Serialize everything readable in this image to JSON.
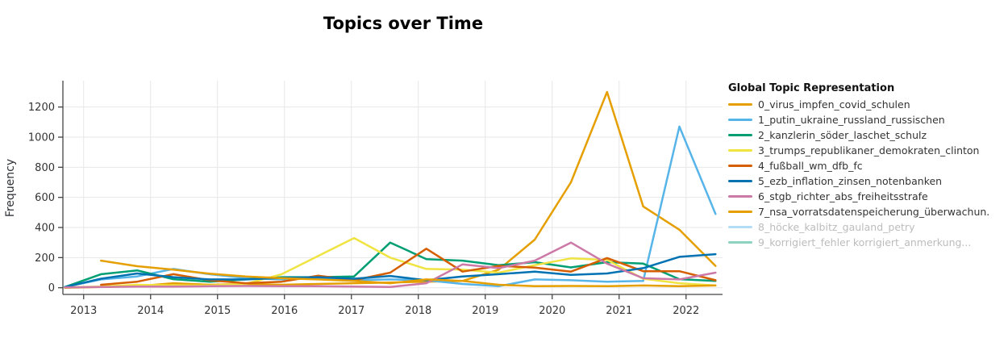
{
  "title": "Topics over Time",
  "axes": {
    "y_title": "Frequency",
    "x_tick_labels": [
      "2013",
      "2014",
      "2015",
      "2016",
      "2017",
      "2018",
      "2019",
      "2020",
      "2021",
      "2022"
    ],
    "y_tick_labels": [
      "0",
      "200",
      "400",
      "600",
      "800",
      "1000",
      "1200"
    ]
  },
  "legend": {
    "title": "Global Topic Representation"
  },
  "colors": {
    "grid": "#e7e7e7",
    "axis": "#444444",
    "tick_text": "#333333",
    "title_text": "#000000",
    "legend_muted_text": "#bcbcbc"
  },
  "chart_data": {
    "type": "line",
    "title": "Topics over Time",
    "xlabel": "",
    "ylabel": "Frequency",
    "legend_title": "Global Topic Representation",
    "grid": true,
    "legend_position": "right",
    "x": [
      2012.72,
      2013.26,
      2013.8,
      2014.34,
      2014.88,
      2015.42,
      2015.96,
      2016.5,
      2017.04,
      2017.58,
      2018.12,
      2018.66,
      2019.2,
      2019.74,
      2020.28,
      2020.82,
      2021.36,
      2021.9,
      2022.44
    ],
    "x_ticks": [
      2013,
      2014,
      2015,
      2016,
      2017,
      2018,
      2019,
      2020,
      2021,
      2022
    ],
    "y_ticks": [
      0,
      200,
      400,
      600,
      800,
      1000,
      1200
    ],
    "xlim": [
      2012.69,
      2022.545
    ],
    "ylim": [
      -44.5,
      1375
    ],
    "series": [
      {
        "name": "0_virus_impfen_covid_schulen",
        "color": "#E69F00",
        "hidden": false,
        "values": [
          0,
          5,
          10,
          30,
          20,
          25,
          20,
          25,
          30,
          35,
          40,
          45,
          120,
          320,
          700,
          1300,
          540,
          385,
          145
        ]
      },
      {
        "name": "1_putin_ukraine_russland_russischen",
        "color": "#56B4E9",
        "hidden": false,
        "values": [
          5,
          55,
          75,
          125,
          90,
          65,
          55,
          65,
          50,
          55,
          50,
          25,
          10,
          55,
          50,
          40,
          45,
          1070,
          490
        ]
      },
      {
        "name": "2_kanzlerin_söder_laschet_schulz",
        "color": "#009E73",
        "hidden": false,
        "values": [
          5,
          90,
          115,
          57,
          40,
          55,
          70,
          70,
          75,
          300,
          190,
          180,
          150,
          170,
          135,
          170,
          160,
          57,
          45
        ]
      },
      {
        "name": "3_trumps_republikaner_demokraten_clinton",
        "color": "#F0E442",
        "hidden": false,
        "values": [
          2,
          8,
          20,
          15,
          15,
          25,
          90,
          210,
          330,
          200,
          125,
          120,
          100,
          150,
          195,
          185,
          60,
          30,
          15
        ]
      },
      {
        "name": "4_fußball_wm_dfb_fc",
        "color": "#D55E00",
        "hidden": false,
        "values": [
          null,
          20,
          40,
          90,
          50,
          30,
          40,
          80,
          50,
          100,
          259,
          107,
          145,
          134,
          107,
          197,
          110,
          110,
          50
        ]
      },
      {
        "name": "5_ezb_inflation_zinsen_notenbanken",
        "color": "#0072B2",
        "hidden": false,
        "values": [
          5,
          60,
          95,
          70,
          55,
          55,
          65,
          70,
          60,
          78,
          50,
          75,
          90,
          107,
          85,
          95,
          130,
          205,
          223
        ]
      },
      {
        "name": "6_stgb_richter_abs_freiheitsstrafe",
        "color": "#CC79A7",
        "hidden": false,
        "values": [
          2,
          5,
          8,
          8,
          10,
          12,
          10,
          10,
          8,
          5,
          30,
          155,
          130,
          180,
          300,
          160,
          63,
          55,
          100
        ]
      },
      {
        "name": "7_nsa_vorratsdatenspeicherung_überwachun.",
        "color": "#E69F00",
        "hidden": false,
        "values": [
          null,
          180,
          143,
          120,
          93,
          75,
          63,
          55,
          45,
          30,
          55,
          45,
          20,
          10,
          12,
          10,
          15,
          10,
          15
        ]
      },
      {
        "name": "8_höcke_kalbitz_gauland_petry",
        "color": "#56B4E9",
        "hidden": true,
        "values": []
      },
      {
        "name": "9_korrigiert_fehler korrigiert_anmerkung...",
        "color": "#009E73",
        "hidden": true,
        "values": []
      }
    ]
  }
}
